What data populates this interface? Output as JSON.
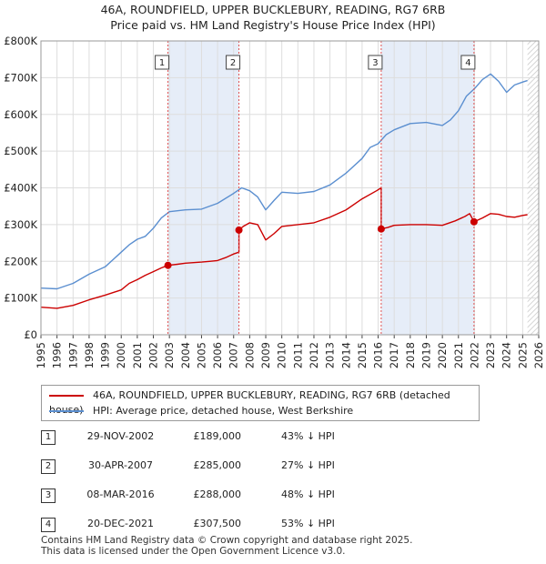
{
  "title": {
    "line1": "46A, ROUNDFIELD, UPPER BUCKLEBURY, READING, RG7 6RB",
    "line2": "Price paid vs. HM Land Registry's House Price Index (HPI)"
  },
  "chart_data": {
    "type": "line",
    "title": "46A, ROUNDFIELD, UPPER BUCKLEBURY, READING, RG7 6RB",
    "subtitle": "Price paid vs. HM Land Registry's House Price Index (HPI)",
    "xlabel": "",
    "ylabel": "",
    "xlim": [
      1995,
      2026
    ],
    "ylim": [
      0,
      800000
    ],
    "grid": true,
    "y_ticks": [
      0,
      100000,
      200000,
      300000,
      400000,
      500000,
      600000,
      700000,
      800000
    ],
    "y_tick_labels": [
      "£0",
      "£100K",
      "£200K",
      "£300K",
      "£400K",
      "£500K",
      "£600K",
      "£700K",
      "£800K"
    ],
    "x_ticks": [
      1995,
      1996,
      1997,
      1998,
      1999,
      2000,
      2001,
      2002,
      2003,
      2004,
      2005,
      2006,
      2007,
      2008,
      2009,
      2010,
      2011,
      2012,
      2013,
      2014,
      2015,
      2016,
      2017,
      2018,
      2019,
      2020,
      2021,
      2022,
      2023,
      2024,
      2025,
      2026
    ],
    "x_tick_labels": [
      "1995",
      "1996",
      "1997",
      "1998",
      "1999",
      "2000",
      "2001",
      "2002",
      "2003",
      "2004",
      "2005",
      "2006",
      "2007",
      "2008",
      "2009",
      "2010",
      "2011",
      "2012",
      "2013",
      "2014",
      "2015",
      "2016",
      "2017",
      "2018",
      "2019",
      "2020",
      "2021",
      "2022",
      "2023",
      "2024",
      "2025",
      "2026"
    ],
    "series": [
      {
        "name": "46A, ROUNDFIELD, UPPER BUCKLEBURY, READING, RG7 6RB (detached house)",
        "color": "#cc0000",
        "points": [
          [
            1995.0,
            75000
          ],
          [
            1996.0,
            72000
          ],
          [
            1997.0,
            80000
          ],
          [
            1998.0,
            95000
          ],
          [
            1999.0,
            108000
          ],
          [
            2000.0,
            122000
          ],
          [
            2000.5,
            140000
          ],
          [
            2001.0,
            150000
          ],
          [
            2001.5,
            162000
          ],
          [
            2002.0,
            172000
          ],
          [
            2002.5,
            182000
          ],
          [
            2002.91,
            189000
          ],
          [
            2003.5,
            192000
          ],
          [
            2004.0,
            195000
          ],
          [
            2005.0,
            198000
          ],
          [
            2005.5,
            200000
          ],
          [
            2006.0,
            202000
          ],
          [
            2006.5,
            210000
          ],
          [
            2007.0,
            220000
          ],
          [
            2007.33,
            225000
          ],
          [
            2007.33,
            285000
          ],
          [
            2007.6,
            295000
          ],
          [
            2008.0,
            305000
          ],
          [
            2008.5,
            300000
          ],
          [
            2009.0,
            258000
          ],
          [
            2009.5,
            275000
          ],
          [
            2010.0,
            295000
          ],
          [
            2011.0,
            300000
          ],
          [
            2012.0,
            305000
          ],
          [
            2013.0,
            320000
          ],
          [
            2014.0,
            340000
          ],
          [
            2015.0,
            370000
          ],
          [
            2015.9,
            392000
          ],
          [
            2016.19,
            400000
          ],
          [
            2016.19,
            288000
          ],
          [
            2016.6,
            292000
          ],
          [
            2017.0,
            298000
          ],
          [
            2018.0,
            300000
          ],
          [
            2019.0,
            300000
          ],
          [
            2020.0,
            298000
          ],
          [
            2020.8,
            310000
          ],
          [
            2021.4,
            322000
          ],
          [
            2021.7,
            330000
          ],
          [
            2021.97,
            307500
          ],
          [
            2022.5,
            318000
          ],
          [
            2023.0,
            330000
          ],
          [
            2023.5,
            328000
          ],
          [
            2024.0,
            322000
          ],
          [
            2024.5,
            320000
          ],
          [
            2025.0,
            325000
          ],
          [
            2025.3,
            327000
          ]
        ]
      },
      {
        "name": "HPI: Average price, detached house, West Berkshire",
        "color": "#5b8fd0",
        "points": [
          [
            1995.0,
            127000
          ],
          [
            1996.0,
            125000
          ],
          [
            1997.0,
            140000
          ],
          [
            1998.0,
            165000
          ],
          [
            1999.0,
            185000
          ],
          [
            2000.0,
            225000
          ],
          [
            2000.5,
            245000
          ],
          [
            2001.0,
            260000
          ],
          [
            2001.5,
            268000
          ],
          [
            2002.0,
            290000
          ],
          [
            2002.5,
            318000
          ],
          [
            2003.0,
            335000
          ],
          [
            2004.0,
            340000
          ],
          [
            2005.0,
            342000
          ],
          [
            2006.0,
            358000
          ],
          [
            2007.0,
            385000
          ],
          [
            2007.5,
            400000
          ],
          [
            2008.0,
            392000
          ],
          [
            2008.5,
            375000
          ],
          [
            2009.0,
            340000
          ],
          [
            2009.5,
            365000
          ],
          [
            2010.0,
            388000
          ],
          [
            2011.0,
            385000
          ],
          [
            2012.0,
            390000
          ],
          [
            2013.0,
            408000
          ],
          [
            2014.0,
            440000
          ],
          [
            2015.0,
            480000
          ],
          [
            2015.5,
            510000
          ],
          [
            2016.0,
            520000
          ],
          [
            2016.5,
            545000
          ],
          [
            2017.0,
            558000
          ],
          [
            2018.0,
            575000
          ],
          [
            2019.0,
            578000
          ],
          [
            2020.0,
            570000
          ],
          [
            2020.5,
            585000
          ],
          [
            2021.0,
            610000
          ],
          [
            2021.5,
            650000
          ],
          [
            2022.0,
            670000
          ],
          [
            2022.5,
            695000
          ],
          [
            2023.0,
            710000
          ],
          [
            2023.5,
            690000
          ],
          [
            2024.0,
            660000
          ],
          [
            2024.5,
            680000
          ],
          [
            2025.0,
            688000
          ],
          [
            2025.3,
            692000
          ]
        ]
      }
    ],
    "sale_markers": [
      {
        "label": "1",
        "x": 2002.91,
        "y": 189000
      },
      {
        "label": "2",
        "x": 2007.33,
        "y": 285000
      },
      {
        "label": "3",
        "x": 2016.19,
        "y": 288000
      },
      {
        "label": "4",
        "x": 2021.97,
        "y": 307500
      }
    ],
    "shaded_periods": [
      [
        2002.91,
        2007.33
      ],
      [
        2016.19,
        2021.97
      ]
    ],
    "forecast_hatch_from": 2025.3
  },
  "legend": {
    "property_label": "46A, ROUNDFIELD, UPPER BUCKLEBURY, READING, RG7 6RB (detached house)",
    "property_color": "#cc0000",
    "hpi_label": "HPI: Average price, detached house, West Berkshire",
    "hpi_color": "#5b8fd0"
  },
  "sales": [
    {
      "num": "1",
      "date": "29-NOV-2002",
      "price": "£189,000",
      "hpi": "43% ↓ HPI"
    },
    {
      "num": "2",
      "date": "30-APR-2007",
      "price": "£285,000",
      "hpi": "27% ↓ HPI"
    },
    {
      "num": "3",
      "date": "08-MAR-2016",
      "price": "£288,000",
      "hpi": "48% ↓ HPI"
    },
    {
      "num": "4",
      "date": "20-DEC-2021",
      "price": "£307,500",
      "hpi": "53% ↓ HPI"
    }
  ],
  "footer": {
    "line1": "Contains HM Land Registry data © Crown copyright and database right 2025.",
    "line2": "This data is licensed under the Open Government Licence v3.0."
  }
}
